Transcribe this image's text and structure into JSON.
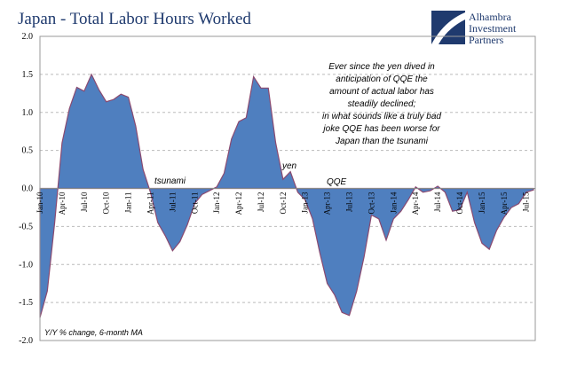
{
  "chart_data": {
    "type": "area",
    "title": "Japan - Total Labor Hours Worked",
    "logo": [
      "Alhambra",
      "Investment",
      "Partners"
    ],
    "y_label": "Y/Y % change, 6-month MA",
    "annotations": {
      "note": [
        "Ever since the yen dived in",
        "anticipation of QQE the",
        "amount of actual labor has",
        "steadily declined;",
        "in what sounds like a truly bad",
        "joke QQE has been worse for",
        "Japan than the tsunami"
      ],
      "tsunami": "tsunami",
      "yen": "yen",
      "qqe": "QQE"
    },
    "categories": [
      "Jan-10",
      null,
      null,
      "Apr-10",
      null,
      null,
      "Jul-10",
      null,
      null,
      "Oct-10",
      null,
      null,
      "Jan-11",
      null,
      null,
      "Apr-11",
      null,
      null,
      "Jul-11",
      null,
      null,
      "Oct-11",
      null,
      null,
      "Jan-12",
      null,
      null,
      "Apr-12",
      null,
      null,
      "Jul-12",
      null,
      null,
      "Oct-12",
      null,
      null,
      "Jan-13",
      null,
      null,
      "Apr-13",
      null,
      null,
      "Jul-13",
      null,
      null,
      "Oct-13",
      null,
      null,
      "Jan-14",
      null,
      null,
      "Apr-14",
      null,
      null,
      "Jul-14",
      null,
      null,
      "Oct-14",
      null,
      null,
      "Jan-15",
      null,
      null,
      "Apr-15",
      null,
      null,
      "Jul-15",
      null
    ],
    "series": [
      {
        "name": "Total Labor Hours",
        "color": "#4f7fbf",
        "outline": "#8a4a70",
        "values": [
          -1.7,
          -1.35,
          -0.45,
          0.6,
          1.05,
          1.33,
          1.28,
          1.5,
          1.3,
          1.14,
          1.17,
          1.24,
          1.2,
          0.82,
          0.25,
          -0.05,
          -0.45,
          -0.62,
          -0.82,
          -0.7,
          -0.48,
          -0.2,
          -0.08,
          -0.03,
          0.02,
          0.2,
          0.65,
          0.88,
          0.93,
          1.47,
          1.32,
          1.32,
          0.6,
          0.12,
          0.22,
          -0.05,
          -0.15,
          -0.4,
          -0.85,
          -1.25,
          -1.4,
          -1.63,
          -1.67,
          -1.35,
          -0.9,
          -0.35,
          -0.4,
          -0.68,
          -0.4,
          -0.3,
          -0.15,
          0.02,
          -0.05,
          -0.03,
          0.03,
          -0.05,
          -0.3,
          -0.28,
          -0.05,
          -0.45,
          -0.72,
          -0.8,
          -0.55,
          -0.38,
          -0.25,
          -0.2,
          -0.05,
          -0.02
        ]
      }
    ],
    "ylim": [
      -2,
      2
    ],
    "yticks": [
      {
        "value": 2,
        "label": "2.0"
      },
      {
        "value": 1.5,
        "label": "1.5"
      },
      {
        "value": 1,
        "label": "1.0"
      },
      {
        "value": 0.5,
        "label": "0.5"
      },
      {
        "value": 0,
        "label": "0.0"
      },
      {
        "value": -0.5,
        "label": "-0.5"
      },
      {
        "value": -1,
        "label": "-1.0"
      },
      {
        "value": -1.5,
        "label": "-1.5"
      },
      {
        "value": -2,
        "label": "-2.0"
      }
    ],
    "grid": true
  }
}
